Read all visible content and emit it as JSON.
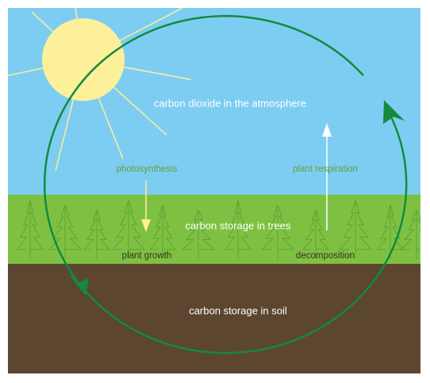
{
  "labels": {
    "atmosphere": "carbon dioxide in the atmosphere",
    "photosynthesis": "photosynthesis",
    "respiration": "plant respiration",
    "trees": "carbon storage in trees",
    "growth": "plant growth",
    "decomposition": "decomposition",
    "soil": "carbon storage in soil"
  }
}
